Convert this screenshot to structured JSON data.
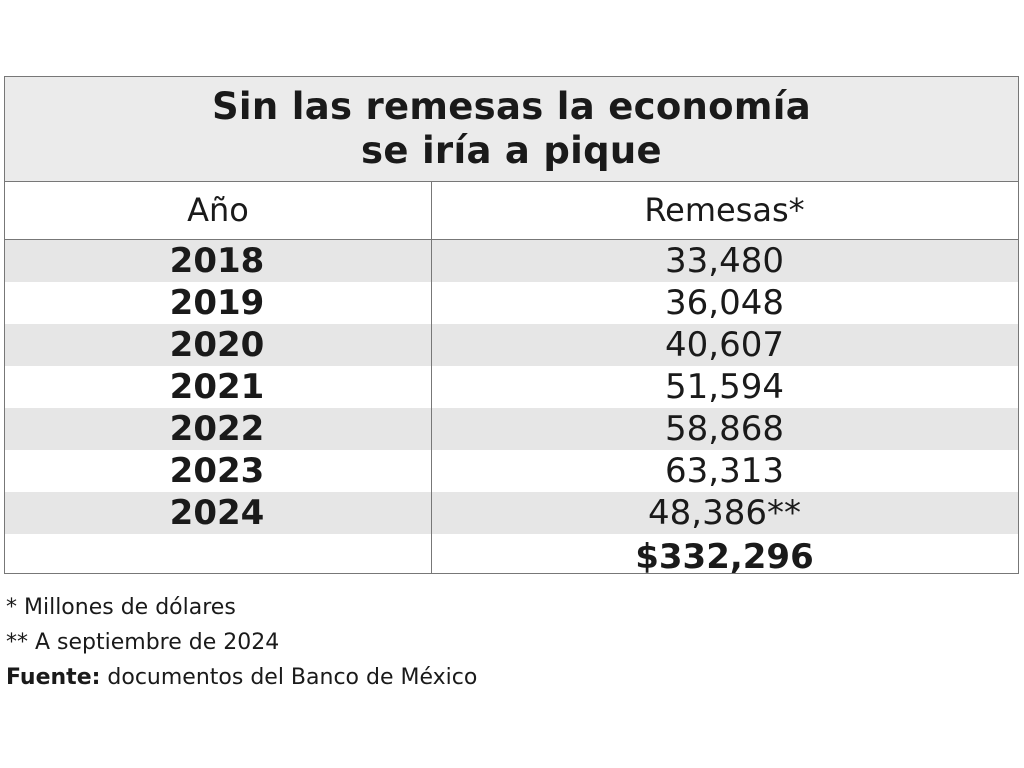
{
  "title": {
    "line1": "Sin las remesas la economía",
    "line2": "se iría a pique"
  },
  "columns": {
    "year": "Año",
    "remittances": "Remesas*"
  },
  "rows": [
    {
      "year": "2018",
      "value": "33,480"
    },
    {
      "year": "2019",
      "value": "36,048"
    },
    {
      "year": "2020",
      "value": "40,607"
    },
    {
      "year": "2021",
      "value": "51,594"
    },
    {
      "year": "2022",
      "value": "58,868"
    },
    {
      "year": "2023",
      "value": "63,313"
    },
    {
      "year": "2024",
      "value": "48,386**"
    }
  ],
  "total": "$332,296",
  "notes": {
    "note1": "* Millones de dólares",
    "note2": "** A septiembre de 2024",
    "source_label": "Fuente:",
    "source_text": " documentos del Banco de México"
  },
  "chart_data": {
    "type": "table",
    "title": "Sin las remesas la economía se iría a pique",
    "columns": [
      "Año",
      "Remesas*"
    ],
    "categories": [
      "2018",
      "2019",
      "2020",
      "2021",
      "2022",
      "2023",
      "2024"
    ],
    "values": [
      33480,
      36048,
      40607,
      51594,
      58868,
      63313,
      48386
    ],
    "total": 332296,
    "colors": {
      "header_band": "#ebebeb",
      "row_shade": "#e6e6e6",
      "border": "#777777"
    }
  }
}
